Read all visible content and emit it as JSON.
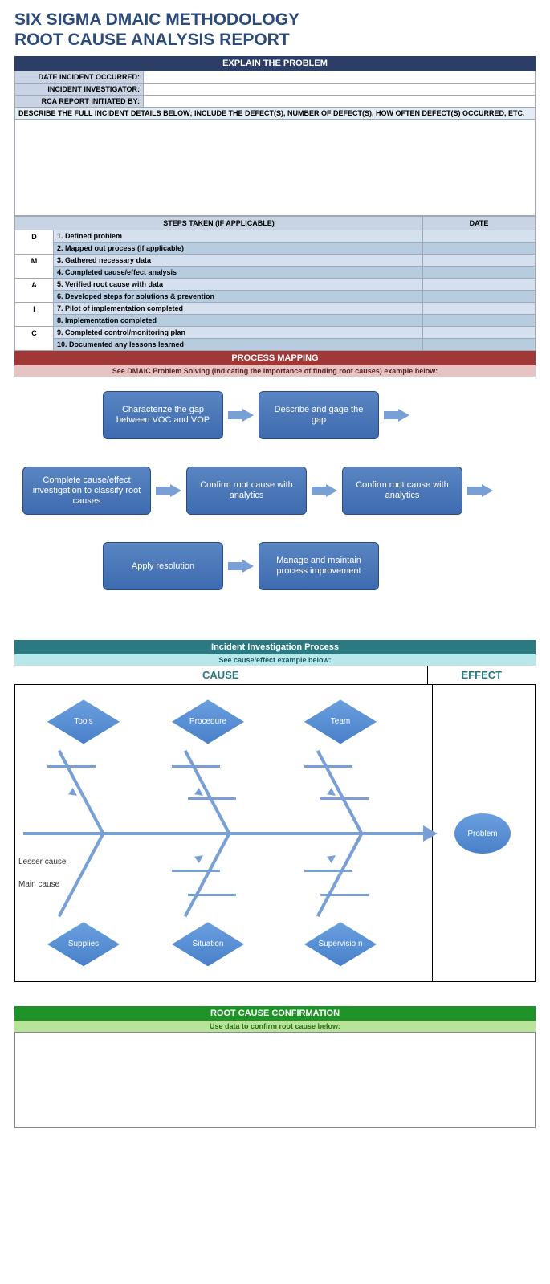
{
  "title_line1": "SIX SIGMA DMAIC METHODOLOGY",
  "title_line2": "ROOT CAUSE ANALYSIS REPORT",
  "colors": {
    "title_text": "#2c4a7a",
    "navy_bar": "#2c3e66",
    "teal_bar": "#2b7a82",
    "teal_light": "#b9e8ea",
    "red_bar": "#a03838",
    "pink_bar": "#e6c4c4",
    "green_bar": "#1e9428",
    "lime_bar": "#b8e49a",
    "blue_box": "#4a76b8",
    "blue_arrow": "#79a0d6",
    "row_light": "#d4e0ee",
    "row_dark": "#b8cce0",
    "label_bg": "#c8d4e4",
    "desc_bg": "#e4ecf4"
  },
  "section1": {
    "header": "EXPLAIN THE PROBLEM",
    "fields": [
      {
        "label": "DATE INCIDENT OCCURRED:",
        "value": ""
      },
      {
        "label": "INCIDENT INVESTIGATOR:",
        "value": ""
      },
      {
        "label": "RCA REPORT INITIATED BY:",
        "value": ""
      }
    ],
    "describe": "DESCRIBE THE FULL INCIDENT DETAILS BELOW; INCLUDE THE DEFECT(S), NUMBER OF DEFECT(S), HOW OFTEN DEFECT(S) OCCURRED, ETC."
  },
  "steps": {
    "col1": "STEPS TAKEN (IF APPLICABLE)",
    "col2": "DATE",
    "dmaic": [
      "D",
      "",
      "M",
      "",
      "A",
      "",
      "I",
      "",
      "C",
      ""
    ],
    "rows": [
      "1. Defined problem",
      "2. Mapped out process (if applicable)",
      "3. Gathered necessary data",
      "4. Completed cause/effect analysis",
      "5. Verified root cause with data",
      "6. Developed steps for solutions & prevention",
      "7. Pilot of implementation completed",
      "8. Implementation completed",
      "9. Completed control/monitoring plan",
      "10. Documented any lessons learned"
    ]
  },
  "process_mapping": {
    "header": "PROCESS MAPPING",
    "sub": "See DMAIC Problem Solving (indicating the importance of finding root causes) example below:",
    "row1": [
      "Characterize the gap between VOC and VOP",
      "Describe and gage the gap"
    ],
    "row2": [
      "Complete cause/effect investigation to classify root causes",
      "Confirm root cause with analytics",
      "Confirm root cause with analytics"
    ],
    "row3": [
      "Apply resolution",
      "Manage and maintain process improvement"
    ]
  },
  "iip": {
    "header": "Incident Investigation Process",
    "sub": "See cause/effect example below:",
    "cause_label": "CAUSE",
    "effect_label": "EFFECT",
    "top_nodes": [
      "Tools",
      "Procedure",
      "Team"
    ],
    "bottom_nodes": [
      "Supplies",
      "Situation",
      "Supervisio n"
    ],
    "effect_node": "Problem",
    "lesser": "Lesser cause",
    "main": "Main cause"
  },
  "root_cause": {
    "header": "ROOT CAUSE CONFIRMATION",
    "sub": "Use data to confirm root cause below:"
  }
}
